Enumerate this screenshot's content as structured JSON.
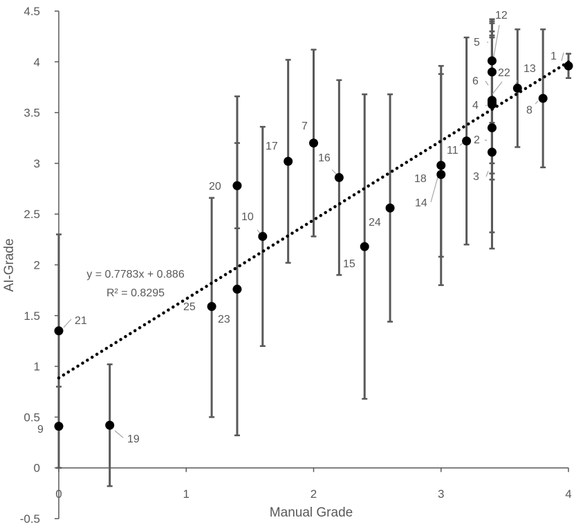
{
  "chart_data": {
    "type": "scatter",
    "title": "",
    "xlabel": "Manual Grade",
    "ylabel": "AI-Grade",
    "xlim": [
      0,
      4
    ],
    "ylim": [
      -0.5,
      4.5
    ],
    "x_ticks": [
      "0",
      "1",
      "2",
      "3",
      "4"
    ],
    "y_ticks": [
      "-0.5",
      "0",
      "0.5",
      "1",
      "1.5",
      "2",
      "2.5",
      "3",
      "3.5",
      "4",
      "4.5"
    ],
    "grid": false,
    "legend": "none",
    "marker_color": "#000000",
    "error_bar_color": "#595959",
    "trendline": {
      "type": "linear",
      "slope": 0.7783,
      "intercept": 0.886,
      "equation": "y = 0.7783x + 0.886",
      "r_squared": "R² = 0.8295"
    },
    "points": [
      {
        "id": "1",
        "x": 4.0,
        "y": 3.96,
        "y_low": 3.84,
        "y_high": 4.08
      },
      {
        "id": "2",
        "x": 3.4,
        "y": 3.35,
        "y_low": 2.32,
        "y_high": 4.38
      },
      {
        "id": "3",
        "x": 3.4,
        "y": 3.11,
        "y_low": 2.84,
        "y_high": 3.38
      },
      {
        "id": "4",
        "x": 3.4,
        "y": 3.58,
        "y_low": 2.9,
        "y_high": 4.26
      },
      {
        "id": "5",
        "x": 3.4,
        "y": 4.01,
        "y_low": 3.6,
        "y_high": 4.42
      },
      {
        "id": "6",
        "x": 3.4,
        "y": 3.62,
        "y_low": 3.0,
        "y_high": 4.24
      },
      {
        "id": "7",
        "x": 2.0,
        "y": 3.2,
        "y_low": 2.28,
        "y_high": 4.12
      },
      {
        "id": "8",
        "x": 3.8,
        "y": 3.64,
        "y_low": 2.96,
        "y_high": 4.32
      },
      {
        "id": "9",
        "x": 0.0,
        "y": 0.41,
        "y_low": 0.0,
        "y_high": 0.8
      },
      {
        "id": "10",
        "x": 1.6,
        "y": 2.28,
        "y_low": 1.2,
        "y_high": 3.36
      },
      {
        "id": "11",
        "x": 3.2,
        "y": 3.22,
        "y_low": 2.2,
        "y_high": 4.24
      },
      {
        "id": "12",
        "x": 3.4,
        "y": 3.9,
        "y_low": 3.4,
        "y_high": 4.4
      },
      {
        "id": "13",
        "x": 3.6,
        "y": 3.74,
        "y_low": 3.16,
        "y_high": 4.32
      },
      {
        "id": "14",
        "x": 3.0,
        "y": 2.89,
        "y_low": 1.8,
        "y_high": 3.88
      },
      {
        "id": "15",
        "x": 2.4,
        "y": 2.18,
        "y_low": 0.68,
        "y_high": 3.68
      },
      {
        "id": "16",
        "x": 2.2,
        "y": 2.86,
        "y_low": 1.9,
        "y_high": 3.82
      },
      {
        "id": "17",
        "x": 1.8,
        "y": 3.02,
        "y_low": 2.02,
        "y_high": 4.02
      },
      {
        "id": "18",
        "x": 3.0,
        "y": 2.98,
        "y_low": 2.08,
        "y_high": 3.96
      },
      {
        "id": "19",
        "x": 0.4,
        "y": 0.42,
        "y_low": -0.18,
        "y_high": 1.02
      },
      {
        "id": "20",
        "x": 1.4,
        "y": 2.78,
        "y_low": 2.36,
        "y_high": 3.2
      },
      {
        "id": "21",
        "x": 0.0,
        "y": 1.35,
        "y_low": 0.4,
        "y_high": 2.3
      },
      {
        "id": "22",
        "x": 3.4,
        "y": 3.6,
        "y_low": 2.16,
        "y_high": 4.3
      },
      {
        "id": "23",
        "x": 1.4,
        "y": 1.76,
        "y_low": 0.32,
        "y_high": 3.66
      },
      {
        "id": "24",
        "x": 2.6,
        "y": 2.56,
        "y_low": 1.44,
        "y_high": 3.68
      },
      {
        "id": "25",
        "x": 1.2,
        "y": 1.59,
        "y_low": 0.5,
        "y_high": 2.66
      }
    ]
  }
}
